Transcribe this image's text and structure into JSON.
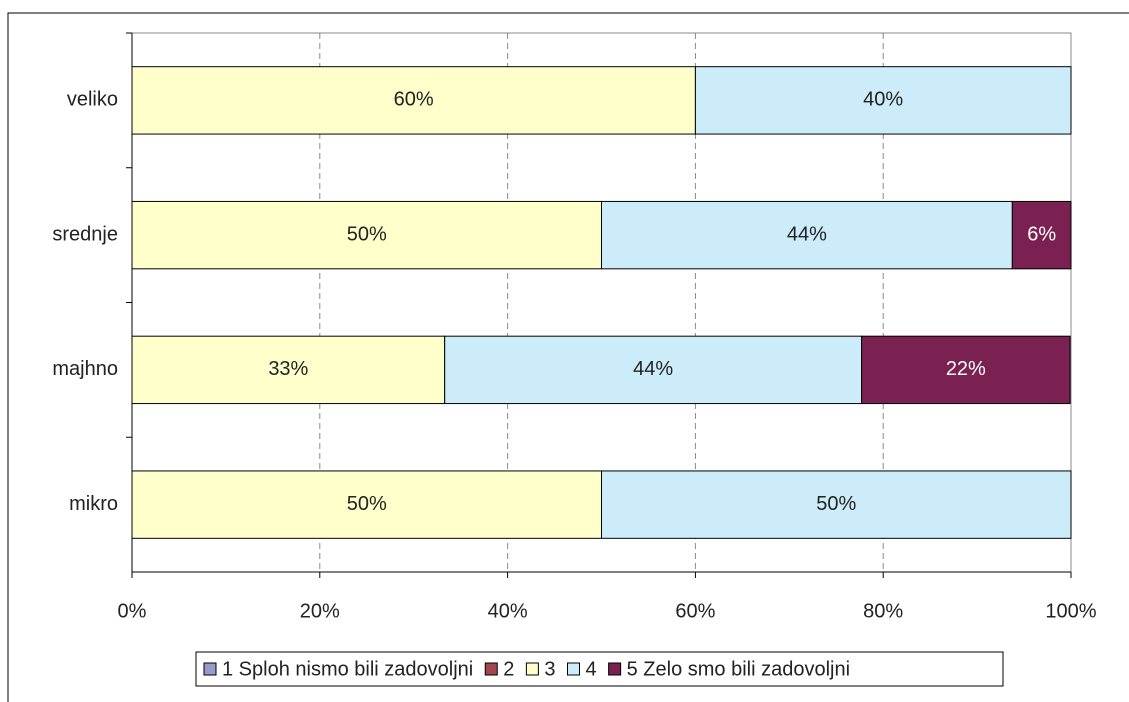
{
  "chart_data": {
    "type": "stacked-barh",
    "categories": [
      "veliko",
      "srednje",
      "majhno",
      "mikro"
    ],
    "series": [
      {
        "name": "1 Sploh nismo bili zadovoljni",
        "color": "#9999cc",
        "values": [
          0,
          0,
          0,
          0
        ]
      },
      {
        "name": "2",
        "color": "#a0474f",
        "values": [
          0,
          0,
          0,
          0
        ]
      },
      {
        "name": "3",
        "color": "#ffffcc",
        "values": [
          60,
          50,
          33.3,
          50
        ],
        "value_labels": [
          "60%",
          "50%",
          "33%",
          "50%"
        ]
      },
      {
        "name": "4",
        "color": "#ccecfa",
        "values": [
          40,
          43.75,
          44.4,
          50
        ],
        "value_labels": [
          "40%",
          "44%",
          "44%",
          "50%"
        ]
      },
      {
        "name": "5 Zelo smo bili zadovoljni",
        "color": "#7b2151",
        "values": [
          0,
          6.25,
          22.2,
          0
        ],
        "value_labels": [
          null,
          "6%",
          "22%",
          null
        ]
      }
    ],
    "xlim": [
      0,
      100
    ],
    "xticks": [
      {
        "value": 0,
        "label": "0%"
      },
      {
        "value": 20,
        "label": "20%"
      },
      {
        "value": 40,
        "label": "40%"
      },
      {
        "value": 60,
        "label": "60%"
      },
      {
        "value": 80,
        "label": "80%"
      },
      {
        "value": 100,
        "label": "100%"
      }
    ],
    "grid": true,
    "legend": "bottom"
  }
}
